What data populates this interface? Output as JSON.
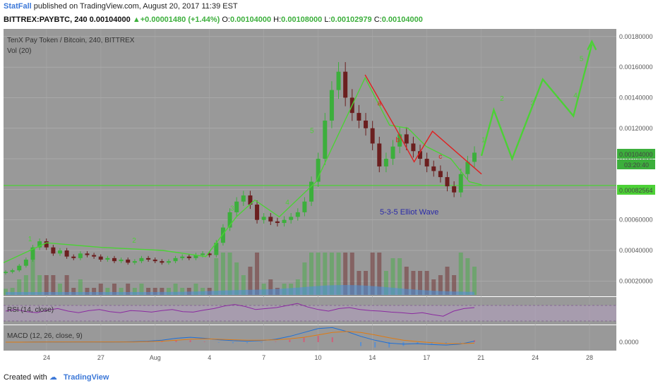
{
  "header": {
    "author": "StatFall",
    "published": "published on TradingView.com, August 20, 2017 11:39 EST",
    "symbol": "BITTREX:PAYBTC, 240",
    "last": "0.00104000",
    "change": "+0.00001480 (+1.44%)",
    "o_label": "O:",
    "o": "0.00104000",
    "h_label": "H:",
    "h": "0.00108000",
    "l_label": "L:",
    "l": "0.00102979",
    "c_label": "C:",
    "c": "0.00104000"
  },
  "footer": {
    "created_with": "Created with",
    "brand": "TradingView"
  },
  "colors": {
    "pane_bg": "#999999",
    "up": "#3caf3c",
    "down": "#6b1f1f",
    "wave_green": "#4cd136",
    "wave_red": "#e02020",
    "rsi": "#8b2aa0",
    "macd": "#1e6fd6",
    "signal": "#e07a10",
    "price_tag_bg": "#3caf3c",
    "volume_area": "#4a90d9"
  },
  "chart_data": [
    {
      "type": "candlestick",
      "title": "TenX Pay Token / Bitcoin, 240, BITTREX",
      "subtitle": "Vol (20)",
      "annotation": "5-3-5 Elliot Wave",
      "y_ticks": [
        "0.00180000",
        "0.00160000",
        "0.00140000",
        "0.00120000",
        "0.00100000",
        "0.00080000",
        "0.00060000",
        "0.00040000",
        "0.00020000"
      ],
      "ylim": [
        0.0001,
        0.00185
      ],
      "x_ticks": [
        "24",
        "27",
        "Aug",
        "4",
        "7",
        "10",
        "14",
        "17",
        "21",
        "24",
        "28"
      ],
      "last_price_tag": "0.00104000",
      "countdown_tag": "03:20:40",
      "support_tag": "0.00082564",
      "support_level": 0.00082564,
      "close_series": [
        0.00026,
        0.00027,
        0.0003,
        0.00034,
        0.00042,
        0.00046,
        0.00042,
        0.00038,
        0.0004,
        0.00036,
        0.00035,
        0.00038,
        0.00037,
        0.00036,
        0.00034,
        0.00035,
        0.00033,
        0.00034,
        0.00032,
        0.00033,
        0.00035,
        0.00034,
        0.00033,
        0.00032,
        0.00033,
        0.00035,
        0.00036,
        0.00035,
        0.00037,
        0.00038,
        0.00037,
        0.00045,
        0.00055,
        0.00065,
        0.00072,
        0.00076,
        0.0007,
        0.0006,
        0.00062,
        0.00059,
        0.00058,
        0.0006,
        0.00062,
        0.00065,
        0.00072,
        0.00085,
        0.001,
        0.00125,
        0.00145,
        0.00157,
        0.0014,
        0.0013,
        0.00125,
        0.0012,
        0.0011,
        0.00095,
        0.001,
        0.00108,
        0.00116,
        0.0011,
        0.00105,
        0.001,
        0.00095,
        0.00092,
        0.00088,
        0.00082,
        0.00078,
        0.0009,
        0.00098,
        0.00104
      ],
      "wave_labels": [
        "1",
        "2",
        "3",
        "4",
        "5",
        "a",
        "b",
        "c",
        "1",
        "2",
        "3",
        "4",
        "5"
      ],
      "green_wave_path": [
        [
          0.0,
          0.00032
        ],
        [
          0.07,
          0.00045
        ],
        [
          0.16,
          0.00042
        ],
        [
          0.26,
          0.0004
        ],
        [
          0.33,
          0.00036
        ],
        [
          0.38,
          0.00062
        ],
        [
          0.41,
          0.00073
        ],
        [
          0.45,
          0.00062
        ],
        [
          0.51,
          0.00085
        ],
        [
          0.59,
          0.00153
        ],
        [
          0.63,
          0.00122
        ],
        [
          0.66,
          0.0012
        ],
        [
          0.69,
          0.00108
        ],
        [
          0.73,
          0.001
        ],
        [
          0.76,
          0.00085
        ],
        [
          0.78,
          0.00083
        ]
      ],
      "red_wave_path": [
        [
          0.59,
          0.00155
        ],
        [
          0.64,
          0.0012
        ],
        [
          0.67,
          0.00098
        ],
        [
          0.7,
          0.00118
        ],
        [
          0.78,
          0.0009
        ]
      ],
      "projection_path": [
        [
          0.78,
          0.00102
        ],
        [
          0.8,
          0.00132
        ],
        [
          0.83,
          0.001
        ],
        [
          0.88,
          0.00152
        ],
        [
          0.93,
          0.00128
        ],
        [
          0.96,
          0.00175
        ]
      ]
    },
    {
      "type": "line",
      "title": "RSI (14, close)",
      "values": [
        55,
        58,
        54,
        52,
        57,
        60,
        55,
        52,
        56,
        58,
        54,
        52,
        56,
        55,
        53,
        56,
        58,
        54,
        53,
        57,
        60,
        65,
        68,
        64,
        58,
        60,
        62,
        66,
        70,
        63,
        58,
        55,
        60,
        62,
        58,
        56,
        55,
        53,
        52,
        50,
        52,
        48,
        45,
        55,
        60,
        62
      ]
    },
    {
      "type": "line",
      "title": "MACD (12, 26, close, 9)",
      "y_ticks": [
        "0.0000"
      ],
      "macd": [
        0,
        0,
        5e-06,
        3e-06,
        2e-06,
        4e-06,
        3e-06,
        2e-06,
        4e-06,
        1e-05,
        2e-05,
        4e-05,
        8e-05,
        0.0001,
        8e-05,
        5e-05,
        3e-05,
        2e-05,
        3e-05,
        6e-05,
        0.00012,
        0.0002,
        0.00028,
        0.0003,
        0.00022,
        0.00012,
        4e-05,
        -2e-05,
        -4e-05,
        -3e-05,
        -5e-05,
        -6e-05,
        -4e-05,
        2e-05
      ],
      "signal": [
        0,
        0,
        2e-06,
        3e-06,
        3e-06,
        3e-06,
        3e-06,
        3e-06,
        3e-06,
        5e-06,
        1e-05,
        2e-05,
        4e-05,
        6e-05,
        7e-05,
        6e-05,
        5e-05,
        4e-05,
        4e-05,
        5e-05,
        7e-05,
        0.0001,
        0.00015,
        0.0002,
        0.00022,
        0.0002,
        0.00015,
        9e-05,
        4e-05,
        1e-05,
        -1e-05,
        -3e-05,
        -3e-05,
        -2e-05
      ]
    }
  ]
}
